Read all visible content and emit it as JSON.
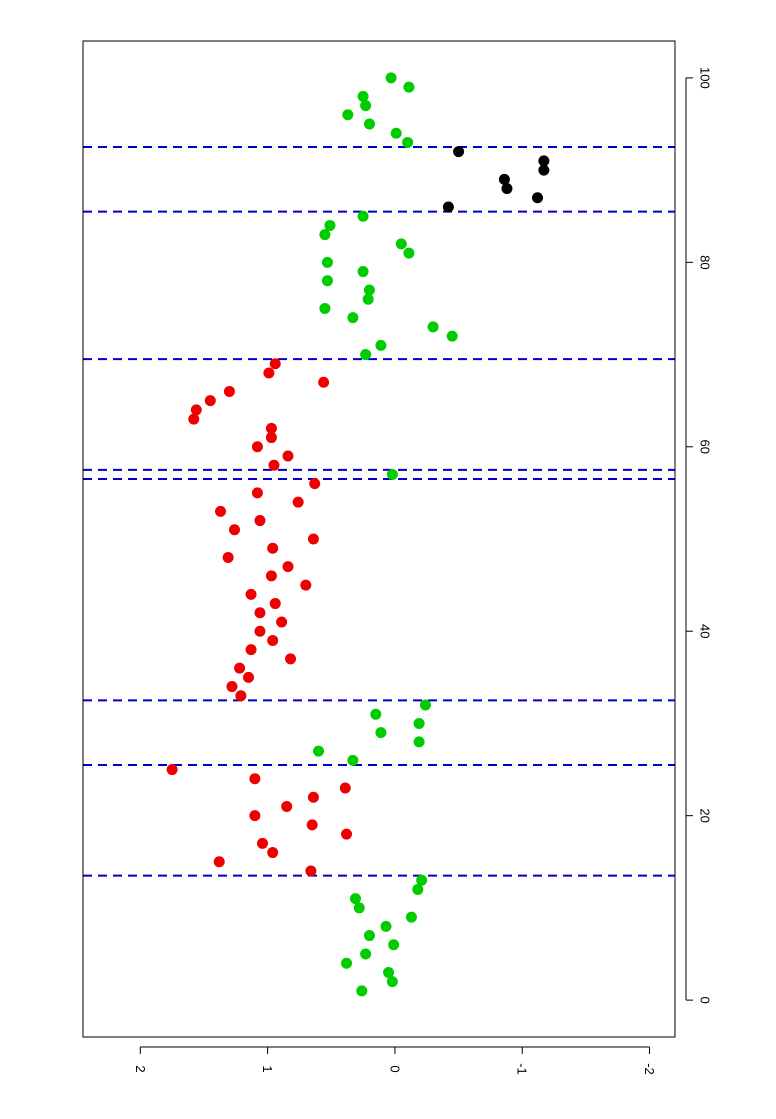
{
  "chart_data": {
    "type": "scatter",
    "orientation": "rotated-90-clockwise",
    "title": "",
    "xlabel": "",
    "ylabel": "",
    "xlim": [
      -4,
      104
    ],
    "ylim": [
      -2.2,
      2.45
    ],
    "x_ticks": [
      {
        "value": 0,
        "label": "0"
      },
      {
        "value": 20,
        "label": "20"
      },
      {
        "value": 40,
        "label": "40"
      },
      {
        "value": 60,
        "label": "60"
      },
      {
        "value": 80,
        "label": "80"
      },
      {
        "value": 100,
        "label": "100"
      }
    ],
    "y_ticks": [
      {
        "value": 2,
        "label": "2"
      },
      {
        "value": 1,
        "label": "1"
      },
      {
        "value": 0,
        "label": "0"
      },
      {
        "value": -1,
        "label": "-1"
      },
      {
        "value": -2,
        "label": "-2"
      }
    ],
    "grid": false,
    "legend": "none",
    "changepoints": [
      13.5,
      25.5,
      32.5,
      56.5,
      57.5,
      69.5,
      85.5,
      92.5
    ],
    "changepoint_color": "#0000cc",
    "series": [
      {
        "color": "#00cc00",
        "points": [
          [
            1,
            0.26
          ],
          [
            2,
            0.02
          ],
          [
            3,
            0.05
          ],
          [
            4,
            0.38
          ],
          [
            5,
            0.23
          ],
          [
            6,
            0.01
          ],
          [
            7,
            0.2
          ],
          [
            8,
            0.07
          ],
          [
            9,
            -0.13
          ],
          [
            10,
            0.28
          ],
          [
            11,
            0.31
          ],
          [
            12,
            -0.18
          ],
          [
            13,
            -0.21
          ],
          [
            26,
            0.33
          ],
          [
            27,
            0.6
          ],
          [
            28,
            -0.19
          ],
          [
            29,
            0.11
          ],
          [
            30,
            -0.19
          ],
          [
            31,
            0.15
          ],
          [
            32,
            -0.24
          ],
          [
            57,
            0.02
          ],
          [
            70,
            0.23
          ],
          [
            71,
            0.11
          ],
          [
            72,
            -0.45
          ],
          [
            73,
            -0.3
          ],
          [
            74,
            0.33
          ],
          [
            75,
            0.55
          ],
          [
            76,
            0.21
          ],
          [
            77,
            0.2
          ],
          [
            78,
            0.53
          ],
          [
            79,
            0.25
          ],
          [
            80,
            0.53
          ],
          [
            81,
            -0.11
          ],
          [
            82,
            -0.05
          ],
          [
            83,
            0.55
          ],
          [
            84,
            0.51
          ],
          [
            85,
            0.25
          ],
          [
            93,
            -0.1
          ],
          [
            94,
            -0.01
          ],
          [
            95,
            0.2
          ],
          [
            96,
            0.37
          ],
          [
            97,
            0.23
          ],
          [
            98,
            0.25
          ],
          [
            99,
            -0.11
          ],
          [
            100,
            0.03
          ]
        ]
      },
      {
        "color": "#ee0000",
        "points": [
          [
            14,
            0.66
          ],
          [
            15,
            1.38
          ],
          [
            16,
            0.96
          ],
          [
            17,
            1.04
          ],
          [
            18,
            0.38
          ],
          [
            19,
            0.65
          ],
          [
            20,
            1.1
          ],
          [
            21,
            0.85
          ],
          [
            22,
            0.64
          ],
          [
            23,
            0.39
          ],
          [
            24,
            1.1
          ],
          [
            25,
            1.75
          ],
          [
            33,
            1.21
          ],
          [
            34,
            1.28
          ],
          [
            35,
            1.15
          ],
          [
            36,
            1.22
          ],
          [
            37,
            0.82
          ],
          [
            38,
            1.13
          ],
          [
            39,
            0.96
          ],
          [
            40,
            1.06
          ],
          [
            41,
            0.89
          ],
          [
            42,
            1.06
          ],
          [
            43,
            0.94
          ],
          [
            44,
            1.13
          ],
          [
            45,
            0.7
          ],
          [
            46,
            0.97
          ],
          [
            47,
            0.84
          ],
          [
            48,
            1.31
          ],
          [
            49,
            0.96
          ],
          [
            50,
            0.64
          ],
          [
            51,
            1.26
          ],
          [
            52,
            1.06
          ],
          [
            53,
            1.37
          ],
          [
            54,
            0.76
          ],
          [
            55,
            1.08
          ],
          [
            56,
            0.63
          ],
          [
            58,
            0.95
          ],
          [
            59,
            0.84
          ],
          [
            60,
            1.08
          ],
          [
            61,
            0.97
          ],
          [
            62,
            0.97
          ],
          [
            63,
            1.58
          ],
          [
            64,
            1.56
          ],
          [
            65,
            1.45
          ],
          [
            66,
            1.3
          ],
          [
            67,
            0.56
          ],
          [
            68,
            0.99
          ],
          [
            69,
            0.94
          ]
        ]
      },
      {
        "color": "#000000",
        "points": [
          [
            86,
            -0.42
          ],
          [
            87,
            -1.12
          ],
          [
            88,
            -0.88
          ],
          [
            89,
            -0.86
          ],
          [
            90,
            -1.17
          ],
          [
            91,
            -1.17
          ],
          [
            92,
            -0.5
          ]
        ]
      }
    ]
  }
}
